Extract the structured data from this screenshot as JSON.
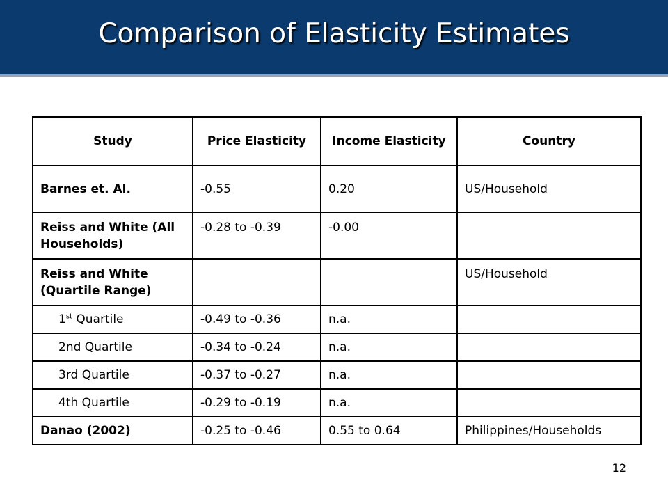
{
  "slide": {
    "title": "Comparison of Elasticity Estimates",
    "page_number": "12"
  },
  "table": {
    "headers": [
      "Study",
      "Price Elasticity",
      "Income Elasticity",
      "Country"
    ],
    "rows": [
      {
        "study": "Barnes et. Al.",
        "price": "-0.55",
        "income": "0.20",
        "country": "US/Household"
      },
      {
        "study": "Reiss and White (All Households)",
        "price": "-0.28 to -0.39",
        "income": "-0.00",
        "country": ""
      },
      {
        "study": "Reiss and White (Quartile Range)",
        "price": "",
        "income": "",
        "country": "US/Household"
      },
      {
        "study_num": "1",
        "study_sup": "st",
        "study_rest": " Quartile",
        "price": "-0.49 to -0.36",
        "income": "n.a.",
        "country": ""
      },
      {
        "study": "2nd Quartile",
        "price": "-0.34 to -0.24",
        "income": "n.a.",
        "country": ""
      },
      {
        "study": "3rd Quartile",
        "price": "-0.37 to -0.27",
        "income": "n.a.",
        "country": ""
      },
      {
        "study": "4th Quartile",
        "price": "-0.29 to -0.19",
        "income": "n.a.",
        "country": ""
      },
      {
        "study": "Danao (2002)",
        "price": "-0.25 to -0.46",
        "income": "0.55 to 0.64",
        "country": "Philippines/Households"
      }
    ]
  }
}
